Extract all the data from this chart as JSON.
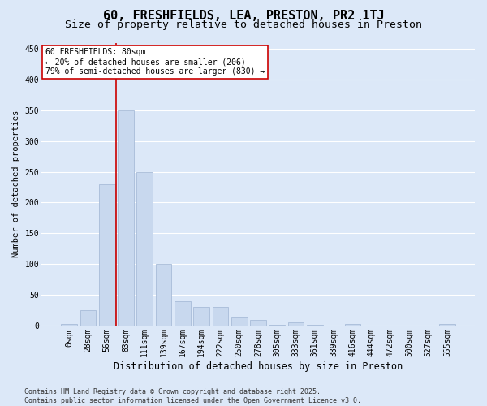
{
  "title": "60, FRESHFIELDS, LEA, PRESTON, PR2 1TJ",
  "subtitle": "Size of property relative to detached houses in Preston",
  "xlabel": "Distribution of detached houses by size in Preston",
  "ylabel": "Number of detached properties",
  "categories": [
    "0sqm",
    "28sqm",
    "56sqm",
    "83sqm",
    "111sqm",
    "139sqm",
    "167sqm",
    "194sqm",
    "222sqm",
    "250sqm",
    "278sqm",
    "305sqm",
    "333sqm",
    "361sqm",
    "389sqm",
    "416sqm",
    "444sqm",
    "472sqm",
    "500sqm",
    "527sqm",
    "555sqm"
  ],
  "values": [
    2,
    25,
    230,
    350,
    250,
    100,
    40,
    30,
    30,
    13,
    9,
    1,
    5,
    1,
    0,
    2,
    0,
    0,
    0,
    0,
    2
  ],
  "bar_color": "#c8d8ee",
  "bar_edge_color": "#a8bcd8",
  "bg_color": "#dce8f8",
  "grid_color": "#ffffff",
  "redline_x": 2.5,
  "annotation_text": "60 FRESHFIELDS: 80sqm\n← 20% of detached houses are smaller (206)\n79% of semi-detached houses are larger (830) →",
  "annotation_box_facecolor": "#ffffff",
  "annotation_box_edge": "#cc0000",
  "footer": "Contains HM Land Registry data © Crown copyright and database right 2025.\nContains public sector information licensed under the Open Government Licence v3.0.",
  "ylim": [
    0,
    460
  ],
  "yticks": [
    0,
    50,
    100,
    150,
    200,
    250,
    300,
    350,
    400,
    450
  ],
  "title_fontsize": 11,
  "subtitle_fontsize": 9.5,
  "xlabel_fontsize": 8.5,
  "ylabel_fontsize": 7.5,
  "tick_fontsize": 7,
  "annotation_fontsize": 7,
  "footer_fontsize": 6
}
